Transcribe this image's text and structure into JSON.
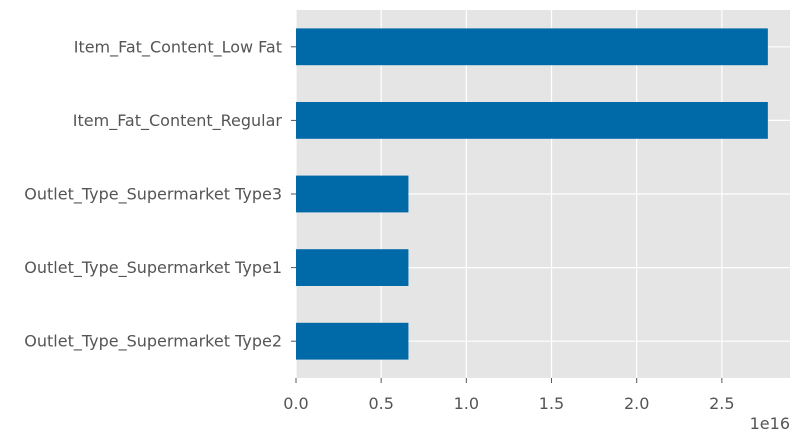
{
  "chart_data": {
    "type": "bar",
    "orientation": "horizontal",
    "categories": [
      "Item_Fat_Content_Low Fat",
      "Item_Fat_Content_Regular",
      "Outlet_Type_Supermarket Type3",
      "Outlet_Type_Supermarket Type1",
      "Outlet_Type_Supermarket Type2"
    ],
    "values": [
      2.77e+16,
      2.77e+16,
      6600000000000000.0,
      6600000000000000.0,
      6600000000000000.0
    ],
    "xlim": [
      0,
      2.9e+16
    ],
    "x_ticks": [
      0,
      5000000000000000.0,
      1e+16,
      1.5e+16,
      2e+16,
      2.5e+16
    ],
    "x_tick_labels": [
      "0.0",
      "0.5",
      "1.0",
      "1.5",
      "2.0",
      "2.5"
    ],
    "x_offset_label": "1e16",
    "grid": true,
    "colors": {
      "bar": "#0069a8",
      "background": "#e5e5e5",
      "grid": "#ffffff",
      "text": "#555555"
    }
  }
}
